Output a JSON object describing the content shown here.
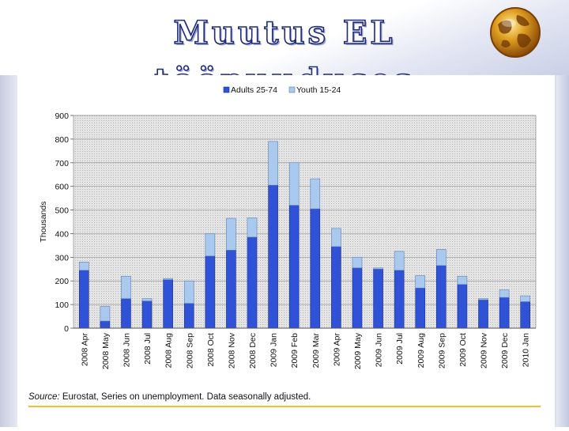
{
  "slide": {
    "title": "Muutus EL tööpuuduses",
    "source_label": "Source:",
    "source_text": "Eurostat, Series on unemployment. Data seasonally adjusted."
  },
  "colors": {
    "adults": "#2f52d6",
    "youth": "#a9c9ef",
    "plot_bg": "#dcdcdc",
    "title_stroke": "#1f2a78"
  },
  "icons": {
    "logo": "globe-icon"
  },
  "chart_data": {
    "type": "bar",
    "stacked": true,
    "title": "",
    "xlabel": "",
    "ylabel": "Thousands",
    "ylim": [
      0,
      900
    ],
    "yticks": [
      "0",
      "100",
      "200",
      "300",
      "400",
      "500",
      "600",
      "700",
      "800",
      "900"
    ],
    "grid": true,
    "legend_position": "top",
    "categories": [
      "2008 Apr",
      "2008 May",
      "2008 Jun",
      "2008 Jul",
      "2008 Aug",
      "2008 Sep",
      "2008 Oct",
      "2008 Nov",
      "2008 Dec",
      "2009 Jan",
      "2009 Feb",
      "2009 Mar",
      "2009 Apr",
      "2009 May",
      "2009 Jun",
      "2009 Jul",
      "2009 Aug",
      "2009 Sep",
      "2009 Oct",
      "2009 Nov",
      "2009 Dec",
      "2010 Jan"
    ],
    "series": [
      {
        "name": "Adults 25-74",
        "values": [
          245,
          30,
          125,
          115,
          205,
          105,
          305,
          330,
          385,
          605,
          520,
          505,
          345,
          255,
          250,
          245,
          170,
          265,
          185,
          120,
          130,
          112
        ]
      },
      {
        "name": "Youth 15-24",
        "values": [
          35,
          62,
          95,
          10,
          5,
          95,
          95,
          135,
          82,
          185,
          180,
          127,
          77,
          45,
          5,
          80,
          52,
          68,
          35,
          5,
          32,
          25
        ]
      }
    ]
  }
}
